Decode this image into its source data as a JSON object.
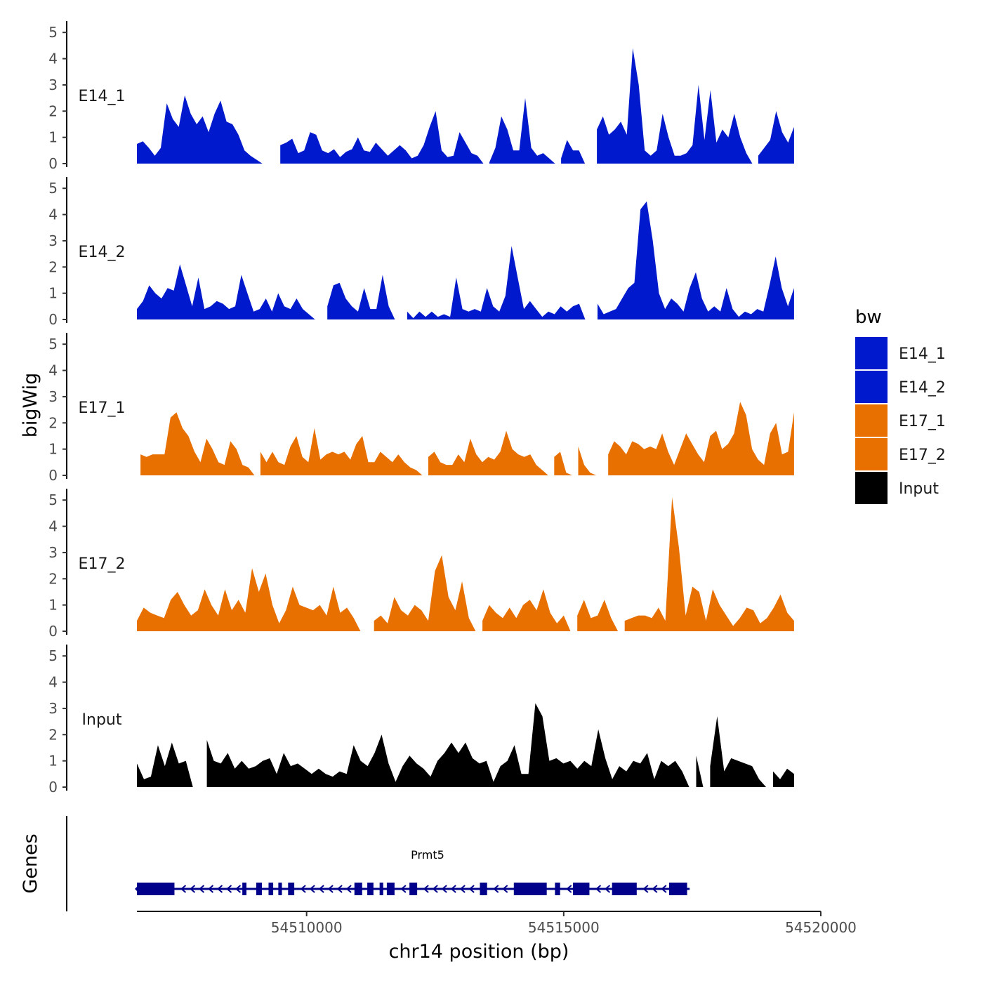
{
  "chart_data": {
    "type": "area",
    "title": "",
    "xlabel": "chr14 position (bp)",
    "ylabel": "bigWig",
    "genes_label": "Genes",
    "legend_title": "bw",
    "xlim": [
      54506700,
      54520000
    ],
    "x_ticks": [
      {
        "value": 54510000,
        "label": "54510000"
      },
      {
        "value": 54515000,
        "label": "54515000"
      },
      {
        "value": 54520000,
        "label": "54520000"
      }
    ],
    "ylim": [
      0,
      5.3
    ],
    "y_ticks": [
      {
        "value": 0,
        "label": "0"
      },
      {
        "value": 1,
        "label": "1"
      },
      {
        "value": 2,
        "label": "2"
      },
      {
        "value": 3,
        "label": "3"
      },
      {
        "value": 4,
        "label": "4"
      },
      {
        "value": 5,
        "label": "5"
      }
    ],
    "series": [
      {
        "name": "E14_1",
        "color": "#0019CC",
        "x_start": 54506700,
        "x_end": 54519480,
        "values": [
          0.75,
          0.85,
          0.6,
          0.3,
          0.6,
          2.3,
          1.7,
          1.4,
          2.6,
          1.9,
          1.5,
          1.8,
          1.2,
          1.9,
          2.4,
          1.6,
          1.5,
          1.1,
          0.5,
          0.3,
          0.15,
          0,
          0,
          0,
          0.7,
          0.8,
          0.95,
          0.4,
          0.5,
          1.2,
          1.1,
          0.5,
          0.4,
          0.55,
          0.25,
          0.45,
          0.55,
          1.0,
          0.5,
          0.45,
          0.8,
          0.55,
          0.3,
          0.5,
          0.7,
          0.5,
          0.2,
          0.3,
          0.7,
          1.4,
          2.0,
          0.5,
          0.25,
          0.3,
          1.2,
          0.8,
          0.4,
          0.3,
          0,
          0.05,
          0.6,
          1.8,
          1.3,
          0.5,
          0.5,
          2.5,
          0.6,
          0.3,
          0.4,
          0.2,
          0,
          0.2,
          0.9,
          0.5,
          0.5,
          0,
          0,
          1.3,
          1.8,
          1.1,
          1.3,
          1.6,
          1.1,
          4.4,
          3.0,
          0.5,
          0.3,
          0.5,
          1.9,
          1.0,
          0.3,
          0.3,
          0.4,
          0.7,
          3.0,
          0.9,
          2.8,
          0.8,
          1.3,
          1.0,
          1.9,
          1.0,
          0.4,
          0,
          0.3,
          0.6,
          0.9,
          2.0,
          1.2,
          0.8,
          1.4
        ]
      },
      {
        "name": "E14_2",
        "color": "#0019CC",
        "x_start": 54506700,
        "x_end": 54519480,
        "values": [
          0.4,
          0.7,
          1.3,
          1.0,
          0.8,
          1.2,
          1.1,
          2.1,
          1.3,
          0.5,
          1.6,
          0.4,
          0.5,
          0.7,
          0.6,
          0.4,
          0.5,
          1.7,
          1.0,
          0.3,
          0.4,
          0.8,
          0.3,
          1.0,
          0.5,
          0.4,
          0.8,
          0.4,
          0.2,
          0,
          0,
          0.5,
          1.3,
          1.4,
          0.8,
          0.5,
          0.3,
          1.2,
          0.4,
          0.4,
          1.7,
          0.5,
          0,
          0,
          0.3,
          0.05,
          0.3,
          0.1,
          0.3,
          0.1,
          0.2,
          0.1,
          1.6,
          0.4,
          0.3,
          0.4,
          0.3,
          1.2,
          0.5,
          0.3,
          0.9,
          2.8,
          1.6,
          0.4,
          0.7,
          0.4,
          0.1,
          0.3,
          0.2,
          0.5,
          0.3,
          0.5,
          0.6,
          0,
          0,
          0.6,
          0.2,
          0.3,
          0.4,
          0.8,
          1.2,
          1.4,
          4.2,
          4.5,
          3.0,
          1.0,
          0.4,
          0.8,
          0.6,
          0.3,
          1.2,
          1.8,
          0.8,
          0.3,
          0.5,
          0.3,
          1.2,
          0.4,
          0.1,
          0.3,
          0.2,
          0.4,
          0.3,
          1.3,
          2.4,
          1.2,
          0.5,
          1.2
        ]
      },
      {
        "name": "E17_1",
        "color": "#E87000",
        "x_start": 54506770,
        "x_end": 54519480,
        "values": [
          0.8,
          0.7,
          0.8,
          0.8,
          0.8,
          2.2,
          2.4,
          1.8,
          1.5,
          0.9,
          0.5,
          1.4,
          1.0,
          0.5,
          0.4,
          1.3,
          1.0,
          0.4,
          0.3,
          0,
          0.9,
          0.5,
          0.9,
          0.5,
          0.4,
          1.1,
          1.5,
          0.7,
          0.5,
          1.8,
          0.6,
          0.8,
          0.9,
          0.8,
          0.9,
          0.6,
          1.2,
          1.5,
          0.5,
          0.5,
          0.9,
          0.7,
          0.5,
          0.8,
          0.5,
          0.3,
          0.2,
          0,
          0.7,
          0.9,
          0.5,
          0.4,
          0.4,
          0.8,
          0.5,
          1.4,
          0.8,
          0.5,
          0.7,
          0.6,
          0.9,
          1.7,
          1.0,
          0.8,
          0.7,
          0.8,
          0.4,
          0.2,
          0,
          0.7,
          0.9,
          0.1,
          0,
          1.1,
          0.4,
          0.1,
          0,
          0,
          0.8,
          1.3,
          1.1,
          0.8,
          1.3,
          1.2,
          1.0,
          1.1,
          1.0,
          1.6,
          0.9,
          0.4,
          1.0,
          1.6,
          1.2,
          0.8,
          0.5,
          1.5,
          1.7,
          1.0,
          1.2,
          1.6,
          2.8,
          2.3,
          1.0,
          0.6,
          0.4,
          1.6,
          2.0,
          0.8,
          0.9,
          2.4
        ]
      },
      {
        "name": "E17_2",
        "color": "#E87000",
        "x_start": 54506700,
        "x_end": 54519480,
        "values": [
          0.4,
          0.9,
          0.7,
          0.6,
          0.5,
          1.2,
          1.5,
          1.0,
          0.6,
          0.8,
          1.6,
          1.0,
          0.6,
          1.6,
          0.8,
          1.2,
          0.7,
          2.4,
          1.5,
          2.2,
          1.0,
          0.3,
          0.8,
          1.7,
          1.0,
          0.9,
          0.8,
          1.0,
          0.6,
          1.7,
          0.7,
          0.9,
          0.5,
          0,
          0,
          0.4,
          0.6,
          0.3,
          1.3,
          0.8,
          0.6,
          1.0,
          0.8,
          0.4,
          2.3,
          2.9,
          1.3,
          0.8,
          1.9,
          0.5,
          0,
          0.4,
          1.0,
          0.7,
          0.5,
          0.9,
          0.5,
          1.0,
          1.2,
          0.8,
          1.6,
          0.7,
          0.3,
          0.6,
          0,
          0.6,
          1.2,
          0.5,
          0.6,
          1.2,
          0.5,
          0,
          0.4,
          0.5,
          0.6,
          0.6,
          0.5,
          0.9,
          0.4,
          5.1,
          3.2,
          0.6,
          1.7,
          1.5,
          0.4,
          1.6,
          1.0,
          0.6,
          0.2,
          0.5,
          0.9,
          0.8,
          0.3,
          0.5,
          0.9,
          1.4,
          0.7,
          0.4
        ]
      },
      {
        "name": "Input",
        "color": "#000000",
        "x_start": 54506700,
        "x_end": 54519480,
        "values": [
          0.9,
          0.3,
          0.4,
          1.6,
          0.8,
          1.7,
          0.9,
          1.0,
          0,
          0,
          1.8,
          1.0,
          0.9,
          1.3,
          0.7,
          1.0,
          0.7,
          0.8,
          1.0,
          1.1,
          0.5,
          1.3,
          0.8,
          0.9,
          0.7,
          0.5,
          0.7,
          0.5,
          0.4,
          0.6,
          0.5,
          1.6,
          1.0,
          0.8,
          1.3,
          2.0,
          0.9,
          0.2,
          0.8,
          1.2,
          0.9,
          0.7,
          0.4,
          1.0,
          1.3,
          1.7,
          1.3,
          1.7,
          1.1,
          0.9,
          1.0,
          0.2,
          0.8,
          1.0,
          1.6,
          0.5,
          0.5,
          3.2,
          2.7,
          1.0,
          1.1,
          0.9,
          1.0,
          0.7,
          1.0,
          0.8,
          2.2,
          1.1,
          0.3,
          0.8,
          0.6,
          1.0,
          0.9,
          1.3,
          0.3,
          1.0,
          0.8,
          1.0,
          0.6,
          0,
          1.2,
          0,
          0.8,
          2.7,
          0.6,
          1.1,
          1.0,
          0.9,
          0.8,
          0.3,
          0,
          0.6,
          0.3,
          0.7,
          0.5
        ]
      }
    ],
    "gene": {
      "name": "Prmt5",
      "color": "#00008B",
      "start": 54506700,
      "end": 54517450,
      "strand": "-",
      "exons": [
        [
          54506700,
          54507430
        ],
        [
          54508750,
          54508830
        ],
        [
          54509020,
          54509130
        ],
        [
          54509260,
          54509350
        ],
        [
          54509450,
          54509520
        ],
        [
          54509640,
          54509760
        ],
        [
          54510930,
          54511080
        ],
        [
          54511180,
          54511300
        ],
        [
          54511420,
          54511490
        ],
        [
          54511560,
          54511710
        ],
        [
          54512000,
          54512150
        ],
        [
          54513370,
          54513510
        ],
        [
          54514030,
          54514670
        ],
        [
          54514830,
          54514930
        ],
        [
          54515180,
          54515500
        ],
        [
          54515940,
          54516420
        ],
        [
          54517050,
          54517400
        ]
      ]
    }
  }
}
